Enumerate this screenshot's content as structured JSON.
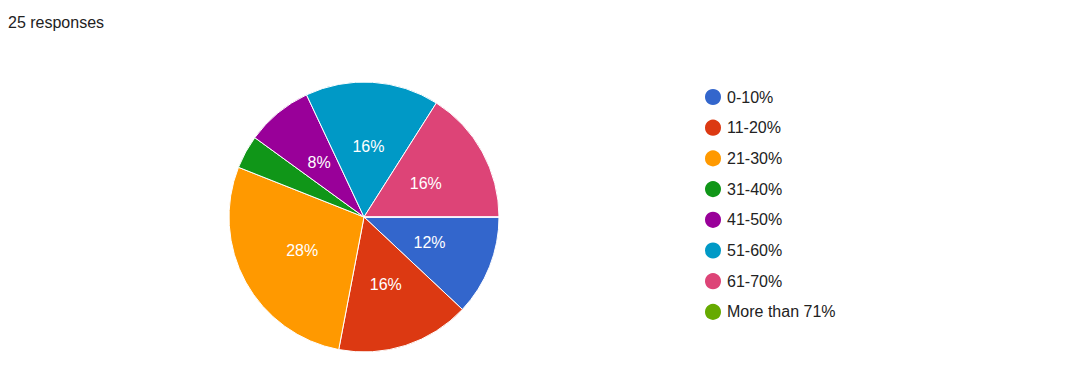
{
  "chart_data": {
    "type": "pie",
    "title": "25 responses",
    "categories": [
      "0-10%",
      "11-20%",
      "21-30%",
      "31-40%",
      "41-50%",
      "51-60%",
      "61-70%",
      "More than 71%"
    ],
    "values": [
      12,
      16,
      28,
      4,
      8,
      16,
      16,
      0
    ],
    "value_labels": [
      "12%",
      "16%",
      "28%",
      null,
      "8%",
      "16%",
      "16%",
      null
    ],
    "colors": [
      "#3366cc",
      "#dc3912",
      "#ff9900",
      "#109618",
      "#990099",
      "#0099c6",
      "#dd4477",
      "#66aa00"
    ],
    "data_labels": true,
    "legend": "right"
  }
}
